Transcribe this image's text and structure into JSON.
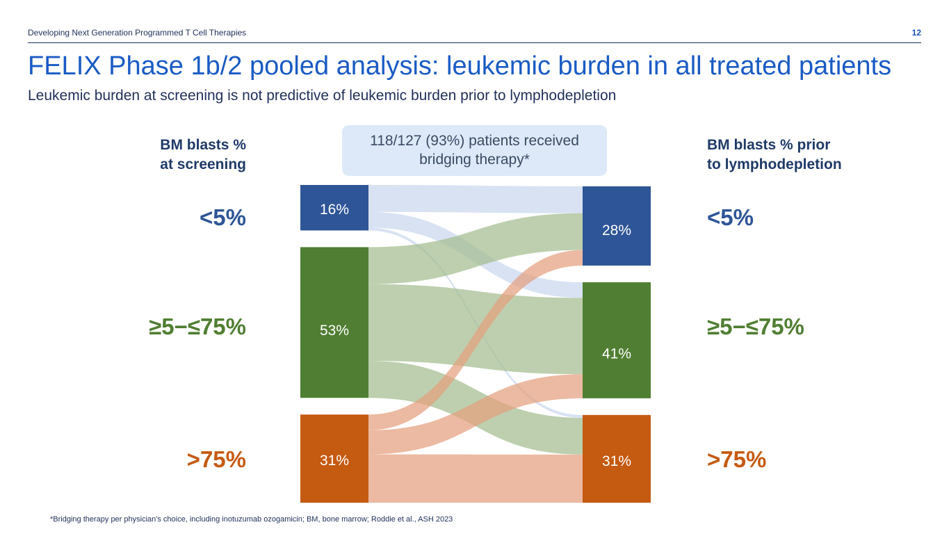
{
  "header": {
    "title": "Developing Next Generation Programmed T Cell Therapies",
    "page_number": "12"
  },
  "slide": {
    "title": "FELIX Phase 1b/2 pooled analysis: leukemic burden in all treated patients",
    "subtitle": "Leukemic burden at screening is not predictive of leukemic burden prior to lymphodepletion",
    "callout": "118/127 (93%) patients received bridging therapy*",
    "left_heading": [
      "BM blasts %",
      "at screening"
    ],
    "right_heading": [
      "BM blasts % prior",
      "to lymphodepletion"
    ],
    "footnote": "*Bridging therapy per physician's choice, including inotuzumab ozogamicin; BM, bone marrow; Roddie et al., ASH 2023"
  },
  "colors": {
    "low": "#2e5597",
    "mid": "#507e32",
    "high": "#c55a11"
  },
  "chart_data": {
    "type": "sankey",
    "categories": [
      {
        "id": "low",
        "name": "<5%",
        "color": "#2e5597"
      },
      {
        "id": "mid",
        "name": "≥5−≤75%",
        "color": "#507e32"
      },
      {
        "id": "high",
        "name": ">75%",
        "color": "#c55a11"
      }
    ],
    "screening": {
      "low": 16,
      "mid": 53,
      "high": 31
    },
    "pre_lymphodepletion": {
      "low": 28,
      "mid": 41,
      "high": 31
    },
    "screening_labels": {
      "low": "16%",
      "mid": "53%",
      "high": "31%"
    },
    "pre_lymphodepletion_labels": {
      "low": "28%",
      "mid": "41%",
      "high": "31%"
    },
    "flows": [
      {
        "from": "low",
        "to": "low",
        "value": 9.5
      },
      {
        "from": "low",
        "to": "mid",
        "value": 5.5
      },
      {
        "from": "low",
        "to": "high",
        "value": 1
      },
      {
        "from": "mid",
        "to": "low",
        "value": 13
      },
      {
        "from": "mid",
        "to": "mid",
        "value": 27
      },
      {
        "from": "mid",
        "to": "high",
        "value": 13
      },
      {
        "from": "high",
        "to": "low",
        "value": 5.5
      },
      {
        "from": "high",
        "to": "mid",
        "value": 8.5
      },
      {
        "from": "high",
        "to": "high",
        "value": 17
      }
    ]
  }
}
